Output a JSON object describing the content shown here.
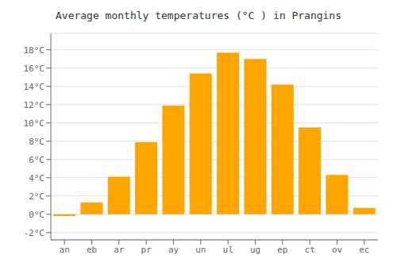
{
  "chart_data": {
    "type": "bar",
    "title": "Average monthly temperatures (°C ) in Prangins",
    "categories": [
      "an",
      "eb",
      "ar",
      "pr",
      "ay",
      "un",
      "ul",
      "ug",
      "ep",
      "ct",
      "ov",
      "ec"
    ],
    "values": [
      -0.2,
      1.3,
      4.1,
      7.9,
      11.9,
      15.4,
      17.7,
      17.0,
      14.2,
      9.5,
      4.3,
      0.7
    ],
    "color": "#FFA500",
    "ylim": [
      -2.8,
      19.8
    ],
    "yticks": [
      {
        "value": -2,
        "label": "-2°C"
      },
      {
        "value": 0,
        "label": "0°C"
      },
      {
        "value": 2,
        "label": "2°C"
      },
      {
        "value": 4,
        "label": "4°C"
      },
      {
        "value": 6,
        "label": "6°C"
      },
      {
        "value": 8,
        "label": "8°C"
      },
      {
        "value": 10,
        "label": "10°C"
      },
      {
        "value": 12,
        "label": "12°C"
      },
      {
        "value": 14,
        "label": "14°C"
      },
      {
        "value": 16,
        "label": "16°C"
      },
      {
        "value": 18,
        "label": "18°C"
      }
    ],
    "grid": true
  }
}
